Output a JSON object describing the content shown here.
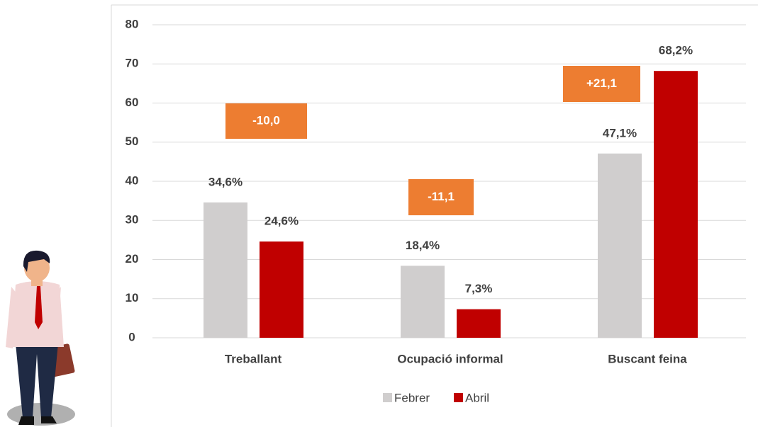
{
  "chart_data": {
    "type": "bar",
    "categories": [
      "Treballant",
      "Ocupació informal",
      "Buscant feina"
    ],
    "series": [
      {
        "name": "Febrer",
        "color": "#d0cece",
        "values": [
          34.6,
          18.4,
          47.1
        ],
        "value_labels": [
          "34,6%",
          "18,4%",
          "47,1%"
        ]
      },
      {
        "name": "Abril",
        "color": "#c00000",
        "values": [
          24.6,
          7.3,
          68.2
        ],
        "value_labels": [
          "24,6%",
          "7,3%",
          "68,2%"
        ]
      }
    ],
    "annotations": [
      "-10,0",
      "-11,1",
      "+21,1"
    ],
    "annotation_color": "#ed7d31",
    "ylim": [
      0,
      80
    ],
    "yticks": [
      0,
      10,
      20,
      30,
      40,
      50,
      60,
      70,
      80
    ],
    "grid": true,
    "legend": "bottom"
  }
}
